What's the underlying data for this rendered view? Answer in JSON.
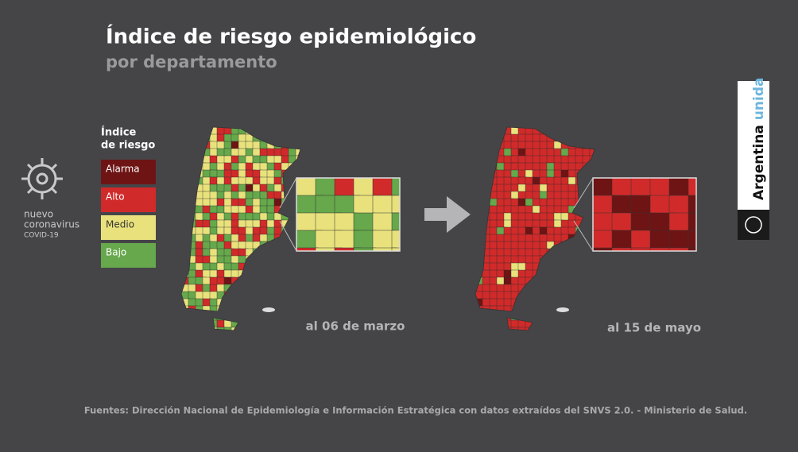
{
  "header": {
    "title": "Índice de riesgo epidemiológico",
    "subtitle": "por departamento"
  },
  "legend": {
    "title": [
      "Índice",
      "de riesgo"
    ],
    "items": [
      {
        "label": "Alarma",
        "color": "#6e1414"
      },
      {
        "label": "Alto",
        "color": "#d12a2a"
      },
      {
        "label": "Medio",
        "color": "#e9e27c"
      },
      {
        "label": "Bajo",
        "color": "#66a84b"
      }
    ]
  },
  "maps": [
    {
      "label": "al 06 de marzo"
    },
    {
      "label": "al 15 de mayo"
    }
  ],
  "branding": {
    "virus": [
      "nuevo",
      "coronavirus",
      "COVID-19"
    ],
    "country": "Argentina",
    "slogan": "unida"
  },
  "source": "Fuentes: Dirección Nacional de Epidemiología e Información Estratégica con datos extraídos del SNVS 2.0. - Ministerio de Salud."
}
